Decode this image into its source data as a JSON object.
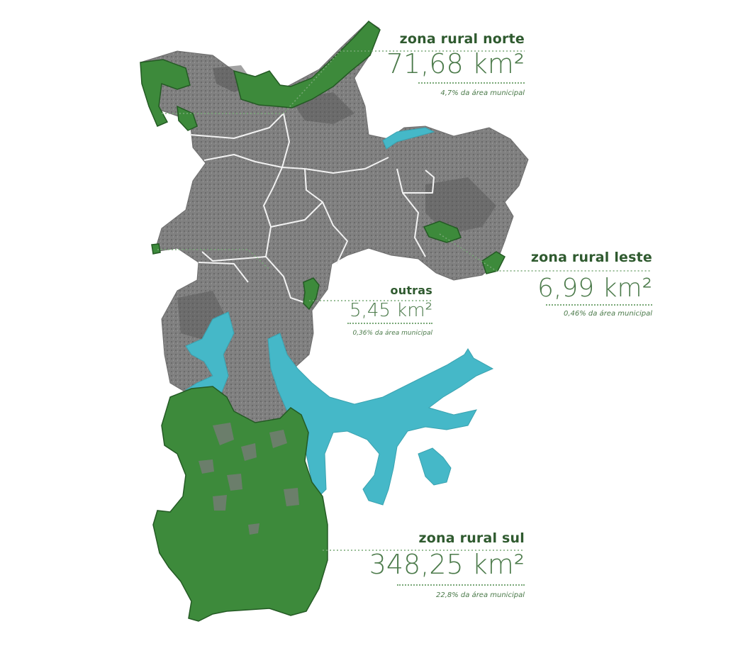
{
  "colors": {
    "rural_green": "#3d8a3b",
    "rural_outline": "#245a24",
    "urban_gray": "#7f7f7f",
    "urban_dark": "#4a4a4a",
    "water_cyan": "#45b8c8",
    "label_dark_green": "#2f5a2f",
    "label_green": "#4b7a4a",
    "leader_green": "#79a877"
  },
  "zones": {
    "norte": {
      "name": "zona rural norte",
      "area": "71,68 km²",
      "pct": "4,7% da área municipal"
    },
    "leste": {
      "name": "zona rural leste",
      "area": "6,99 km²",
      "pct": "0,46% da área municipal"
    },
    "outras": {
      "name": "outras",
      "area": "5,45 km²",
      "pct": "0,36% da área municipal"
    },
    "sul": {
      "name": "zona rural sul",
      "area": "348,25 km²",
      "pct": "22,8% da área municipal"
    }
  }
}
